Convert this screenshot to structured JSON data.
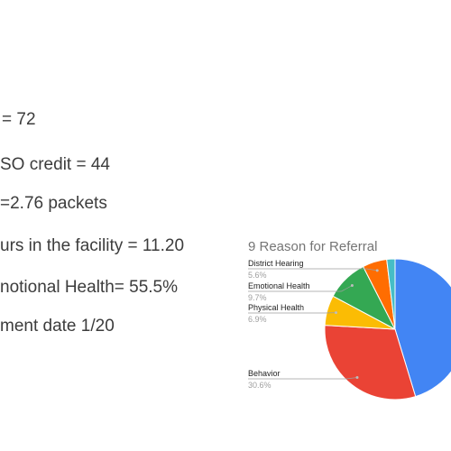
{
  "stats": [
    "= 72",
    "SO credit = 44",
    "=2.76 packets",
    "urs in the facility = 11.20",
    "notional Health= 55.5%",
    "ment date 1/20"
  ],
  "colors": {
    "text": "#3c3c3c",
    "title": "#757575",
    "label_name": "#222222",
    "label_pct": "#9e9e9e"
  },
  "chart_data": {
    "type": "pie",
    "title": "9 Reason for Referral",
    "slices": [
      {
        "name": "",
        "value": 45.3,
        "color": "#4285f4"
      },
      {
        "name": "Behavior",
        "value": 30.6,
        "color": "#ea4335",
        "pct_label": "30.6%"
      },
      {
        "name": "Physical Health",
        "value": 6.9,
        "color": "#fbbc04",
        "pct_label": "6.9%"
      },
      {
        "name": "Emotional Health",
        "value": 9.7,
        "color": "#34a853",
        "pct_label": "9.7%"
      },
      {
        "name": "District Hearing",
        "value": 5.6,
        "color": "#ff6d01",
        "pct_label": "5.6%"
      },
      {
        "name": "",
        "value": 1.9,
        "color": "#46bdc6"
      }
    ]
  }
}
